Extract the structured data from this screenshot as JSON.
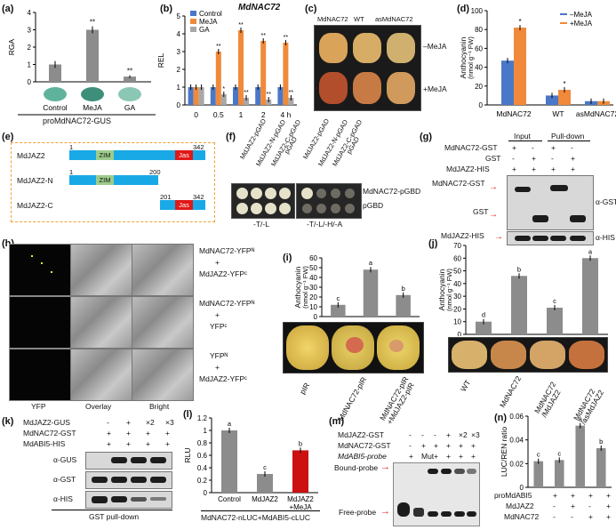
{
  "panels": [
    "(a)",
    "(b)",
    "(c)",
    "(d)",
    "(e)",
    "(f)",
    "(g)",
    "(h)",
    "(i)",
    "(j)",
    "(k)",
    "(l)",
    "(m)",
    "(n)"
  ],
  "a": {
    "ylabel": "RGA",
    "yticks": [
      "0",
      "1",
      "2",
      "3",
      "4"
    ],
    "categories": [
      "Control",
      "MeJA",
      "GA"
    ],
    "values": [
      1.0,
      3.0,
      0.3
    ],
    "errors": [
      0.2,
      0.2,
      0.08
    ],
    "sig": [
      "",
      "**",
      "**"
    ],
    "xlabel": "proMdNAC72-GUS",
    "bar_color": "#8c8c8c"
  },
  "b": {
    "title": "MdNAC72",
    "ylabel": "REL",
    "yticks": [
      "0",
      "1",
      "2",
      "3",
      "4",
      "5"
    ],
    "x": [
      "0",
      "0.5",
      "1",
      "2",
      "4 h"
    ],
    "legend": [
      "Control",
      "MeJA",
      "GA"
    ],
    "colors": [
      "#4a78c8",
      "#f08a3a",
      "#a8a8a8"
    ],
    "series": [
      {
        "name": "Control",
        "values": [
          1.0,
          1.0,
          1.0,
          1.0,
          1.0
        ],
        "sig": [
          "",
          "",
          "",
          "",
          ""
        ]
      },
      {
        "name": "MeJA",
        "values": [
          1.0,
          3.0,
          4.2,
          3.6,
          3.5
        ],
        "sig": [
          "",
          "**",
          "**",
          "**",
          "**"
        ]
      },
      {
        "name": "GA",
        "values": [
          1.0,
          0.6,
          0.4,
          0.3,
          0.4
        ],
        "sig": [
          "",
          "*",
          "**",
          "**",
          "**"
        ]
      }
    ]
  },
  "c": {
    "cols": [
      "MdNAC72",
      "WT",
      "asMdNAC72"
    ],
    "rows": [
      "–MeJA",
      "+MeJA"
    ]
  },
  "d": {
    "ylabel": "Anthocyanin",
    "yunit": "(nmol g⁻¹ FW)",
    "yticks": [
      "0",
      "20",
      "40",
      "60",
      "80",
      "100"
    ],
    "categories": [
      "MdNAC72",
      "WT",
      "asMdNAC72"
    ],
    "legend": [
      "–MeJA",
      "+MeJA"
    ],
    "series": [
      {
        "name": "–MeJA",
        "values": [
          47,
          10,
          4
        ]
      },
      {
        "name": "+MeJA",
        "values": [
          82,
          16,
          4
        ]
      }
    ],
    "sig": [
      "*",
      "*",
      ""
    ]
  },
  "e": {
    "rows": [
      {
        "name": "MdJAZ2",
        "start": "1",
        "end": "342",
        "domains": [
          "ZIM",
          "Jas"
        ]
      },
      {
        "name": "MdJAZ2-N",
        "start": "1",
        "end": "200",
        "domains": [
          "ZIM"
        ]
      },
      {
        "name": "MdJAZ2-C",
        "start": "201",
        "end": "342",
        "domains": [
          "Jas"
        ]
      }
    ]
  },
  "f": {
    "cols": [
      "MdJAZ2-pGAD",
      "MdJAZ2-N-pGAD",
      "MdJAZ2-C-pGAD",
      "pGAD"
    ],
    "rows": [
      "MdNAC72-pGBD",
      "pGBD"
    ],
    "media": [
      "-T/-L",
      "-T/-L/-H/-A"
    ]
  },
  "g": {
    "rows": [
      "MdNAC72-GST",
      "GST",
      "MdJAZ2-HIS"
    ],
    "headers": [
      "Input",
      "Pull-down"
    ],
    "signs": [
      [
        "+",
        "-",
        "+",
        "-"
      ],
      [
        "-",
        "+",
        "-",
        "+"
      ],
      [
        "+",
        "+",
        "+",
        "+"
      ]
    ],
    "labels": [
      "MdNAC72-GST",
      "GST",
      "MdJAZ2-HIS"
    ],
    "antibodies": [
      "α-GST",
      "α-HIS"
    ]
  },
  "h": {
    "cols": [
      "YFP",
      "Overlay",
      "Bright"
    ],
    "rows": [
      [
        "MdNAC72-YFPᴺ",
        "+",
        "MdJAZ2-YFPᶜ"
      ],
      [
        "MdNAC72-YFPᴺ",
        "+",
        "YFPᶜ"
      ],
      [
        "YFPᴺ",
        "+",
        "MdJAZ2-YFPᶜ"
      ]
    ]
  },
  "i": {
    "ylabel": "Anthocyanin",
    "yunit": "(nmol g⁻¹ FW)",
    "yticks": [
      "0",
      "10",
      "20",
      "30",
      "40",
      "50",
      "60"
    ],
    "categories": [
      "pIR",
      "MdNAC72-pIR",
      "MdNAC72-pIR\n+MdJAZ2-pIR"
    ],
    "values": [
      12,
      48,
      22
    ],
    "letters": [
      "c",
      "a",
      "b"
    ]
  },
  "j": {
    "ylabel": "Anthocyanin",
    "yunit": "(nmol g⁻¹ FW)",
    "yticks": [
      "0",
      "10",
      "20",
      "30",
      "40",
      "50",
      "60",
      "70"
    ],
    "categories": [
      "WT",
      "MdNAC72",
      "MdNAC72\n/MdJAZ2",
      "MdNAC72\n/asMdJAZ2"
    ],
    "values": [
      10,
      46,
      21,
      60
    ],
    "letters": [
      "d",
      "b",
      "c",
      "a"
    ]
  },
  "k": {
    "rows": [
      "MdJAZ2-GUS",
      "MdNAC72-GST",
      "MdABI5-HIS"
    ],
    "signs": [
      [
        "-",
        "+",
        "×2",
        "×3"
      ],
      [
        "+",
        "+",
        "+",
        "+"
      ],
      [
        "+",
        "+",
        "+",
        "+"
      ]
    ],
    "antibodies": [
      "α-GUS",
      "α-GST",
      "α-HIS"
    ],
    "footer": "GST pull-down"
  },
  "l": {
    "ylabel": "RLU",
    "yticks": [
      "0",
      "0.2",
      "0.4",
      "0.6",
      "0.8",
      "1",
      "1.2"
    ],
    "categories": [
      "Control",
      "MdJAZ2",
      "MdJAZ2\n+MeJA"
    ],
    "values": [
      1.0,
      0.3,
      0.68
    ],
    "letters": [
      "a",
      "c",
      "b"
    ],
    "colors": [
      "#8c8c8c",
      "#8c8c8c",
      "#cc1111"
    ],
    "footer": "MdNAC72-nLUC+MdABI5-cLUC"
  },
  "m": {
    "rows": [
      "MdJAZ2-GST",
      "MdNAC72-GST",
      "MdABI5-probe"
    ],
    "signs": [
      [
        "-",
        "-",
        "-",
        "+",
        "×2",
        "×3"
      ],
      [
        "-",
        "+",
        "+",
        "+",
        "+",
        "+"
      ],
      [
        "+",
        "Mut",
        "+",
        "+",
        "+",
        "+"
      ]
    ],
    "labels": [
      "Bound-probe",
      "Free-probe"
    ]
  },
  "n": {
    "ylabel": "LUC/REN ratio",
    "yticks": [
      "0",
      "0.02",
      "0.04",
      "0.06"
    ],
    "values": [
      0.022,
      0.023,
      0.052,
      0.033
    ],
    "letters": [
      "c",
      "c",
      "a",
      "b"
    ],
    "rows": [
      "proMdABI5",
      "MdJAZ2",
      "MdNAC72"
    ],
    "signs": [
      [
        "+",
        "+",
        "+",
        "+"
      ],
      [
        "-",
        "+",
        "-",
        "+"
      ],
      [
        "-",
        "-",
        "+",
        "+"
      ]
    ]
  }
}
